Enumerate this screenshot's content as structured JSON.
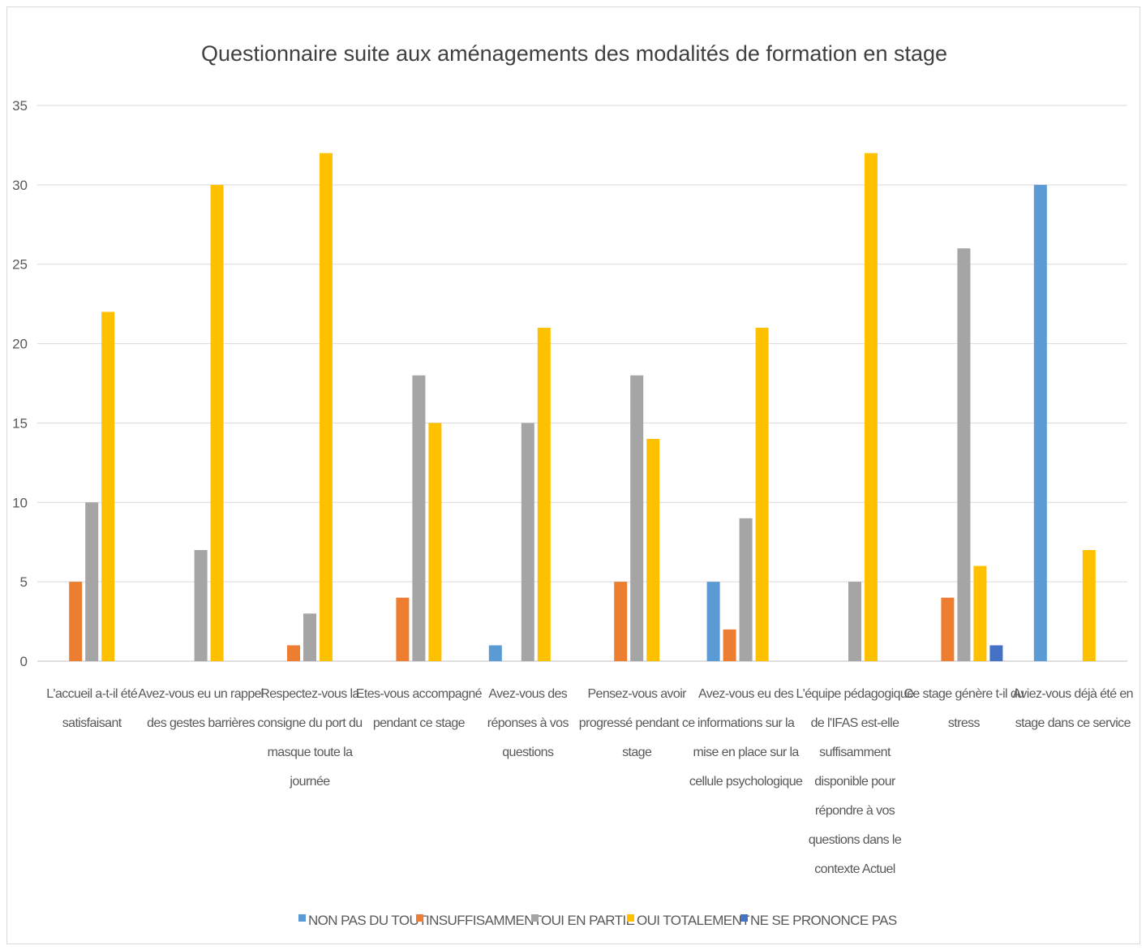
{
  "chart_data": {
    "type": "bar",
    "title": "Questionnaire suite aux aménagements des modalités de formation en stage",
    "ylim": [
      0,
      35
    ],
    "yticks": [
      0,
      5,
      10,
      15,
      20,
      25,
      30,
      35
    ],
    "grid": true,
    "legend_position": "bottom",
    "categories": [
      [
        "L'accueil a-t-il été",
        "satisfaisant"
      ],
      [
        "Avez-vous eu un rappel",
        "des gestes barrières"
      ],
      [
        "Respectez-vous la",
        "consigne du port du",
        "masque toute la",
        "journée"
      ],
      [
        "Etes-vous accompagné",
        "pendant ce stage"
      ],
      [
        "Avez-vous des",
        "réponses à vos",
        "questions"
      ],
      [
        "Pensez-vous avoir",
        "progressé pendant ce",
        "stage"
      ],
      [
        "Avez-vous eu des",
        "informations sur la",
        "mise en place sur la",
        "cellule psychologique"
      ],
      [
        "L'équipe pédagogique",
        "de l'IFAS est-elle",
        "suffisamment",
        "disponible pour",
        "répondre à vos",
        "questions dans le",
        "contexte Actuel"
      ],
      [
        "Ce stage génère t-il du",
        "stress"
      ],
      [
        "Aviez-vous déjà été en",
        "stage dans ce service"
      ]
    ],
    "series": [
      {
        "name": "NON PAS DU TOUT",
        "color": "#5B9BD5",
        "values": [
          0,
          0,
          0,
          0,
          1,
          0,
          5,
          0,
          0,
          30
        ]
      },
      {
        "name": "INSUFFISAMMENT",
        "color": "#ED7D31",
        "values": [
          5,
          0,
          1,
          4,
          0,
          5,
          2,
          0,
          4,
          0
        ]
      },
      {
        "name": "OUI EN PARTIE",
        "color": "#A5A5A5",
        "values": [
          10,
          7,
          3,
          18,
          15,
          18,
          9,
          5,
          26,
          0
        ]
      },
      {
        "name": "OUI TOTALEMENT",
        "color": "#FFC000",
        "values": [
          22,
          30,
          32,
          15,
          21,
          14,
          21,
          32,
          6,
          7
        ]
      },
      {
        "name": "NE SE PRONONCE PAS",
        "color": "#4472C4",
        "values": [
          0,
          0,
          0,
          0,
          0,
          0,
          0,
          0,
          1,
          0
        ]
      }
    ]
  }
}
